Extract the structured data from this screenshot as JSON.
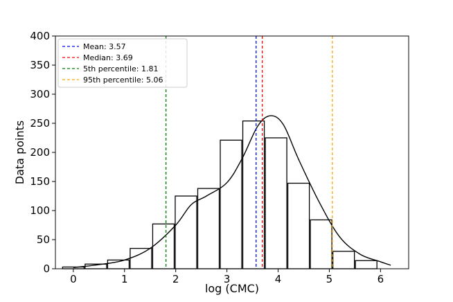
{
  "chart_data": {
    "type": "bar",
    "title": "",
    "xlabel": "log (CMC)",
    "ylabel": "Data points",
    "xlim": [
      -0.35,
      6.55
    ],
    "ylim": [
      0,
      400
    ],
    "xticks": [
      0,
      1,
      2,
      3,
      4,
      5,
      6
    ],
    "yticks": [
      0,
      50,
      100,
      150,
      200,
      250,
      300,
      350,
      400
    ],
    "bin_width": 0.42,
    "bars": [
      {
        "x": 0.0,
        "value": 3
      },
      {
        "x": 0.44,
        "value": 8
      },
      {
        "x": 0.88,
        "value": 15
      },
      {
        "x": 1.32,
        "value": 35
      },
      {
        "x": 1.76,
        "value": 77
      },
      {
        "x": 2.2,
        "value": 125
      },
      {
        "x": 2.64,
        "value": 138
      },
      {
        "x": 3.08,
        "value": 221
      },
      {
        "x": 3.52,
        "value": 254
      },
      {
        "x": 3.96,
        "value": 225
      },
      {
        "x": 4.4,
        "value": 147
      },
      {
        "x": 4.84,
        "value": 84
      },
      {
        "x": 5.28,
        "value": 30
      },
      {
        "x": 5.72,
        "value": 14
      }
    ],
    "kde": {
      "x": [
        0.0,
        0.5,
        1.0,
        1.5,
        2.0,
        2.3,
        2.6,
        3.0,
        3.3,
        3.6,
        3.85,
        4.1,
        4.4,
        4.8,
        5.2,
        5.6,
        6.0,
        6.2
      ],
      "y": [
        2,
        7,
        15,
        35,
        75,
        110,
        125,
        148,
        190,
        245,
        263,
        248,
        188,
        115,
        55,
        25,
        12,
        6
      ]
    },
    "vlines": [
      {
        "label": "Mean: 3.57",
        "x": 3.57,
        "color": "#0000ff"
      },
      {
        "label": "Median: 3.69",
        "x": 3.69,
        "color": "#ff0000"
      },
      {
        "label": "5th percentile: 1.81",
        "x": 1.81,
        "color": "#008000"
      },
      {
        "label": "95th percentile: 5.06",
        "x": 5.06,
        "color": "#ffa500"
      }
    ],
    "legend_position": "top-left"
  }
}
